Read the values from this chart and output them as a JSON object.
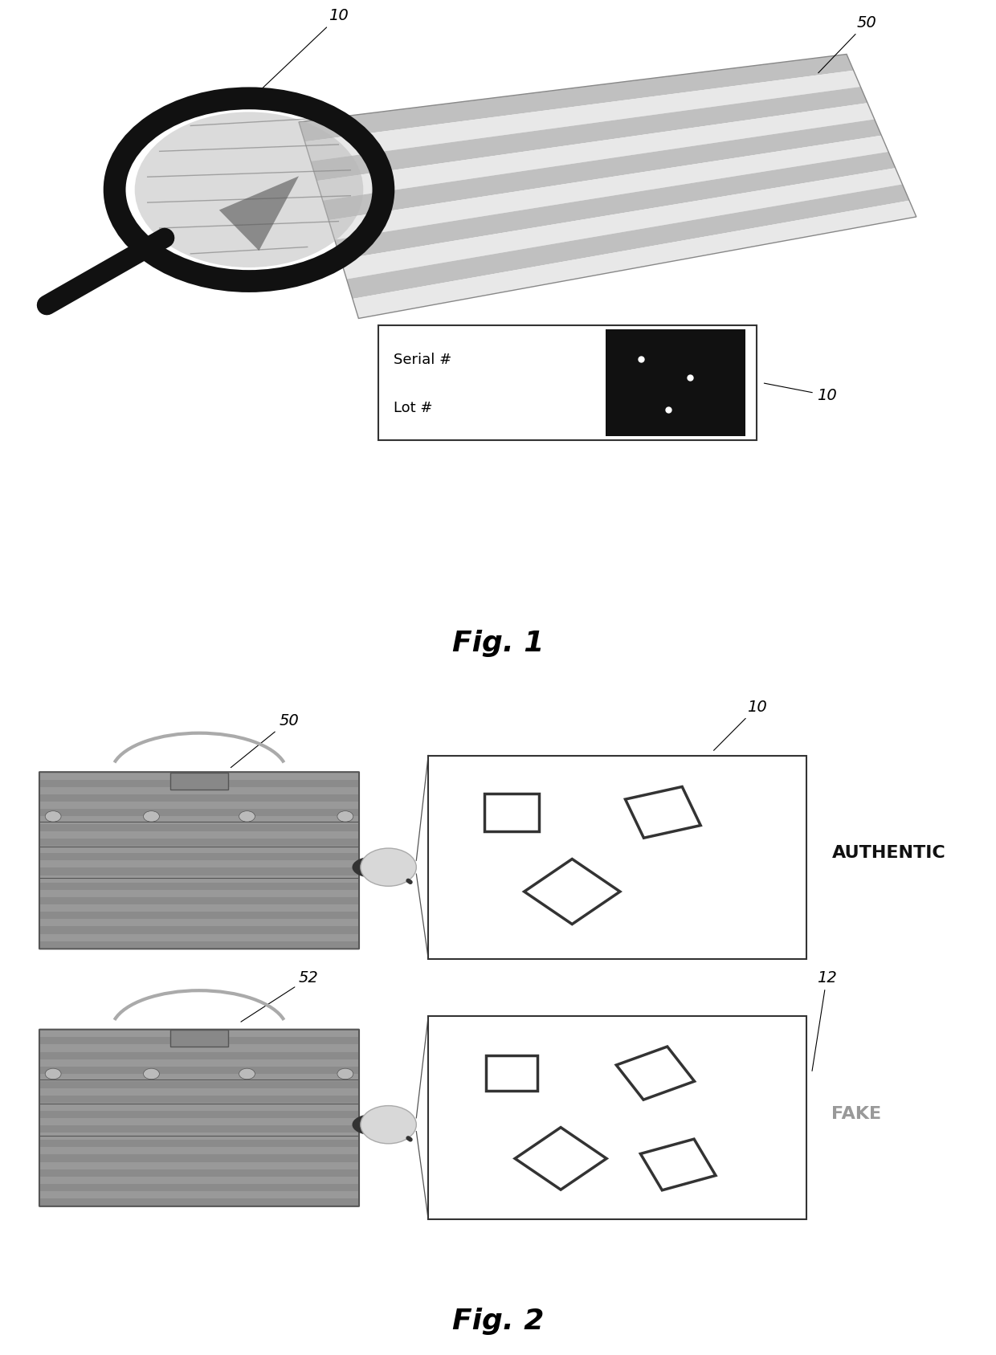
{
  "fig1_title": "Fig. 1",
  "fig2_title": "Fig. 2",
  "label_10_fig1_top": "10",
  "label_50_fig1": "50",
  "label_10_fig1_box": "10",
  "label_50_fig2_top": "50",
  "label_10_fig2": "10",
  "label_52_fig2": "52",
  "label_12_fig2": "12",
  "authentic_text": "AUTHENTIC",
  "fake_text": "FAKE",
  "serial_text": "Serial #",
  "lot_text": "Lot #",
  "bg_color": "#ffffff",
  "magnifier_ring_color": "#111111",
  "magnifier_handle_color": "#111111",
  "tag_light": "#d8d8d8",
  "tag_dark": "#aaaaaa",
  "box_edge_color": "#333333",
  "dark_marker_color": "#111111",
  "bag_fill": "#aaaaaa",
  "bag_edge": "#555555",
  "authentic_color": "#111111",
  "fake_color": "#999999"
}
